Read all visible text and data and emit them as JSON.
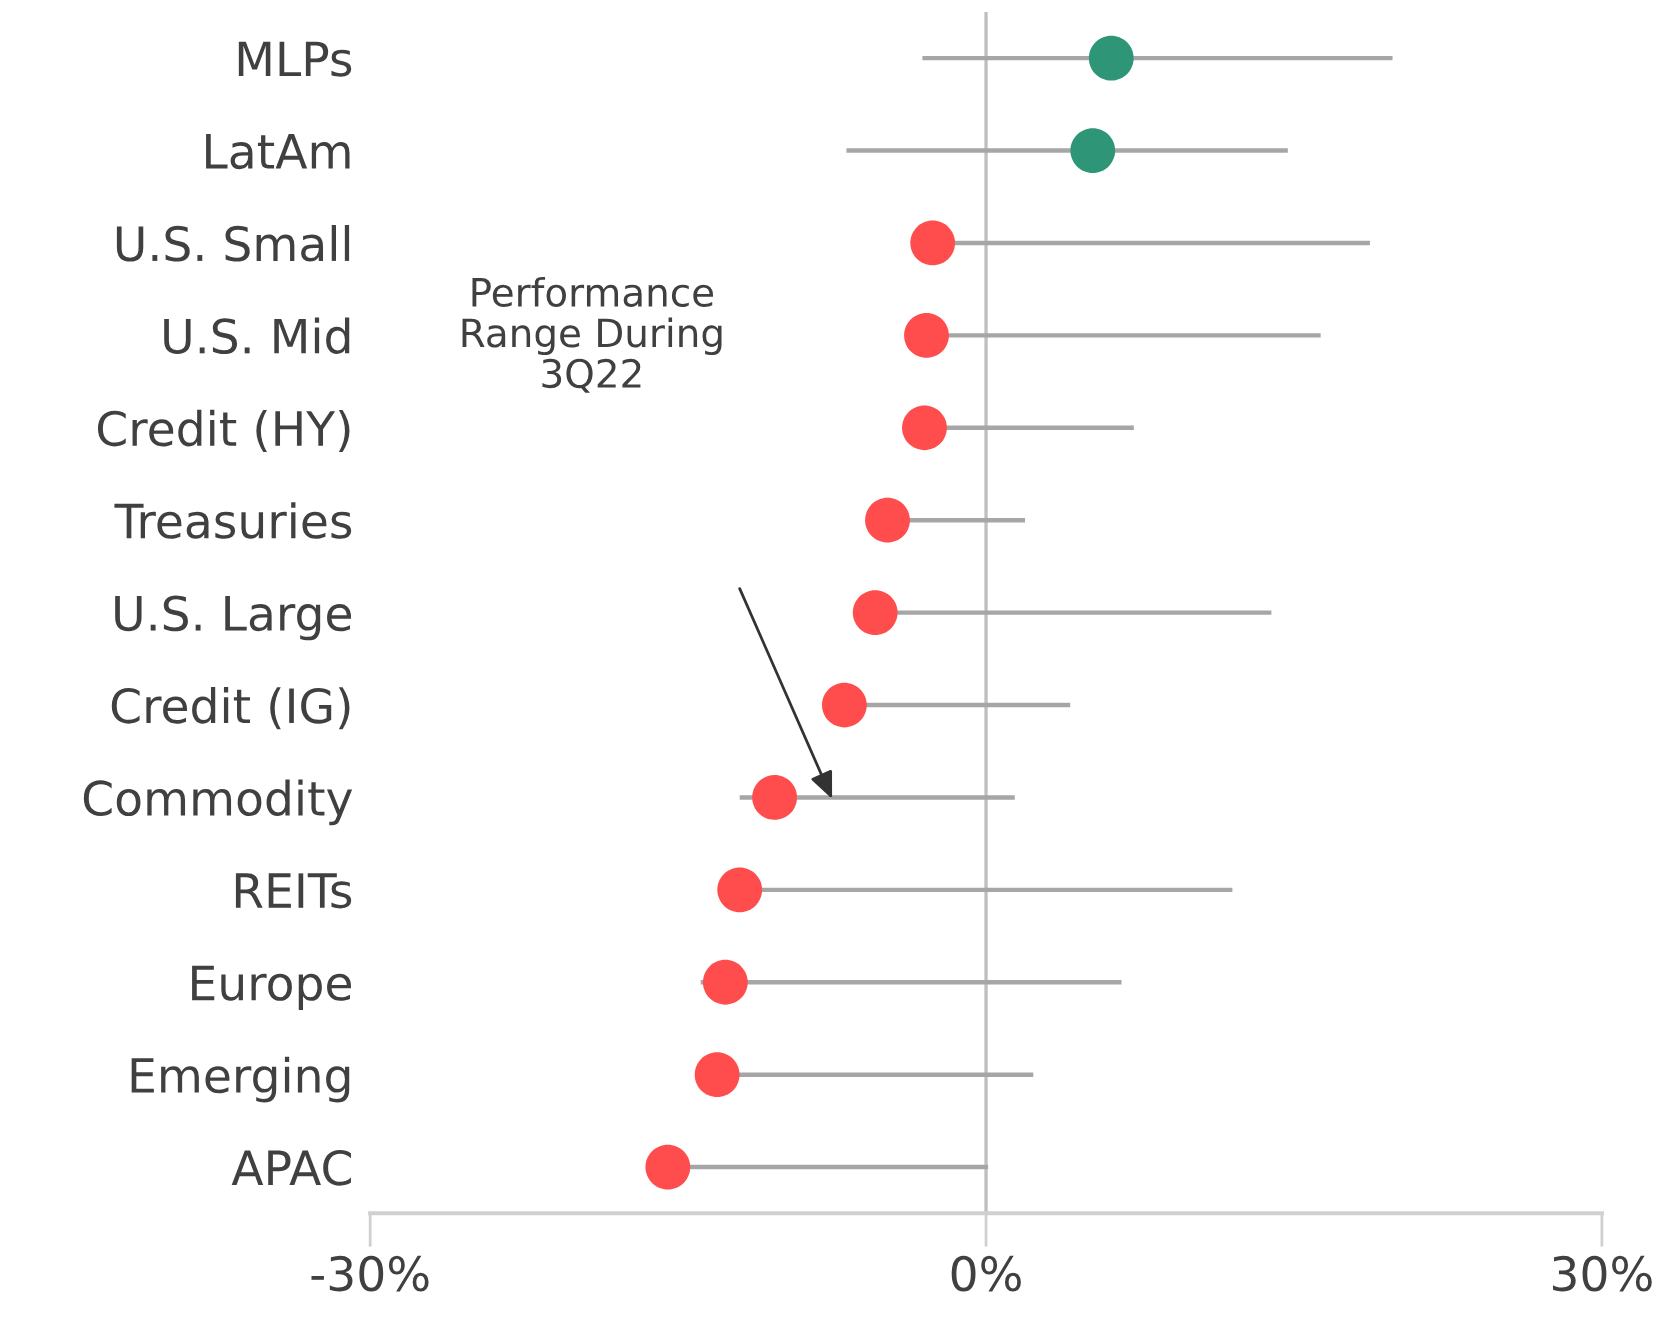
{
  "chart_data": {
    "type": "scatter",
    "orientation": "horizontal",
    "categories": [
      "MLPs",
      "LatAm",
      "U.S. Small",
      "U.S. Mid",
      "Credit (HY)",
      "Treasuries",
      "U.S. Large",
      "Credit (IG)",
      "Commodity",
      "REITs",
      "Europe",
      "Emerging",
      "APAC"
    ],
    "values": [
      6.1,
      5.2,
      -2.6,
      -2.9,
      -3.0,
      -4.8,
      -5.4,
      -6.9,
      -10.3,
      -12.0,
      -12.7,
      -13.1,
      -15.5
    ],
    "colors": [
      "#2e9676",
      "#2e9676",
      "#ff4d4d",
      "#ff4d4d",
      "#ff4d4d",
      "#ff4d4d",
      "#ff4d4d",
      "#ff4d4d",
      "#ff4d4d",
      "#ff4d4d",
      "#ff4d4d",
      "#ff4d4d",
      "#ff4d4d"
    ],
    "errors": [
      [
        -3.1,
        19.8
      ],
      [
        -6.8,
        14.7
      ],
      [
        -2.6,
        18.7
      ],
      [
        -2.9,
        16.3
      ],
      [
        -3.0,
        7.2
      ],
      [
        -4.8,
        1.9
      ],
      [
        -5.4,
        13.9
      ],
      [
        -6.9,
        4.1
      ],
      [
        -12.0,
        1.4
      ],
      [
        -13.0,
        12.0
      ],
      [
        -13.9,
        6.6
      ],
      [
        -13.1,
        2.3
      ],
      [
        -15.5,
        0.1
      ]
    ],
    "xlim": [
      -30,
      30
    ],
    "xticks": [
      {
        "value": -30,
        "label": "-30%"
      },
      {
        "value": 0,
        "label": "0%"
      },
      {
        "value": 30,
        "label": "30%"
      }
    ],
    "ref_lines": [
      {
        "axis": "x",
        "value": 0,
        "label": null,
        "color": "#bfbfbf"
      }
    ],
    "annotations": [
      "Performance\nRange During\n3Q22"
    ],
    "marker": "circle",
    "grid": false,
    "legend": false
  }
}
